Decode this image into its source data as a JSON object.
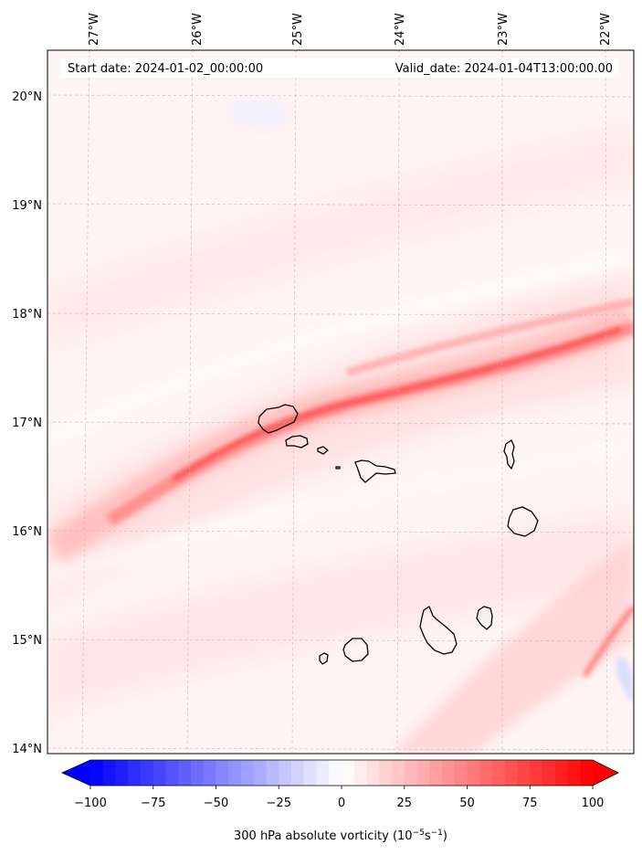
{
  "map": {
    "start_date_label": "Start date: 2024-01-02_00:00:00",
    "valid_date_label": "Valid_date: 2024-01-04T13:00:00.00",
    "lon_ticks": [
      "27°W",
      "26°W",
      "25°W",
      "24°W",
      "23°W",
      "22°W"
    ],
    "lat_ticks": [
      "20°N",
      "19°N",
      "18°N",
      "17°N",
      "16°N",
      "15°N",
      "14°N"
    ],
    "field": "300 hPa absolute vorticity",
    "islands": [
      "Santo Antão",
      "São Vicente",
      "Santa Luzia",
      "Branco",
      "São Nicolau",
      "Sal",
      "Boa Vista",
      "Santiago",
      "Maio",
      "Fogo",
      "Brava"
    ]
  },
  "colorbar": {
    "label_main": "300 hPa absolute vorticity (10",
    "label_exp1": "−5",
    "label_mid": "s",
    "label_exp2": "−1",
    "label_end": ")",
    "ticks": [
      "−100",
      "−75",
      "−50",
      "−25",
      "0",
      "25",
      "50",
      "75",
      "100"
    ],
    "range": [
      -100,
      100
    ],
    "step": 5,
    "cmap": "bwr",
    "extend": "both"
  },
  "colors": {
    "negative_end": "#0000ff",
    "neutral": "#ffffff",
    "positive_end": "#ff0000",
    "coastline": "#000000",
    "grid": "#bbbbbb"
  }
}
